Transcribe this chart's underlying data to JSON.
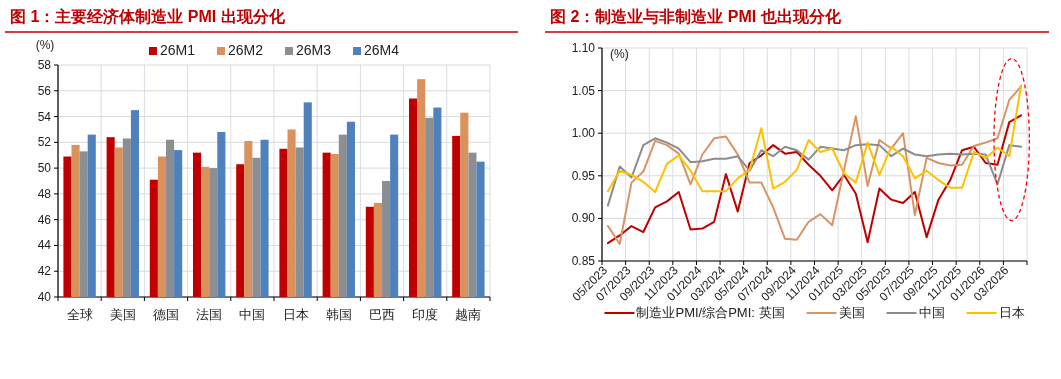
{
  "chart_data": [
    {
      "type": "bar",
      "title": "图 1：主要经济体制造业 PMI 出现分化",
      "ylabel": "(%)",
      "categories": [
        "全球",
        "美国",
        "德国",
        "法国",
        "中国",
        "日本",
        "韩国",
        "巴西",
        "印度",
        "越南"
      ],
      "series": [
        {
          "name": "26M1",
          "color": "#c00000",
          "values": [
            50.9,
            52.4,
            49.1,
            51.2,
            50.3,
            51.5,
            51.2,
            47.0,
            55.4,
            52.5
          ]
        },
        {
          "name": "26M2",
          "color": "#d9925b",
          "values": [
            51.8,
            51.6,
            50.9,
            50.1,
            52.1,
            53.0,
            51.1,
            47.3,
            56.9,
            54.3
          ]
        },
        {
          "name": "26M3",
          "color": "#8b8f94",
          "values": [
            51.3,
            52.3,
            52.2,
            50.0,
            50.8,
            51.6,
            52.6,
            49.0,
            53.9,
            51.2
          ]
        },
        {
          "name": "26M4",
          "color": "#4f81bd",
          "values": [
            52.6,
            54.5,
            51.4,
            52.8,
            52.2,
            55.1,
            53.6,
            52.6,
            54.7,
            50.5
          ]
        }
      ],
      "ylim": [
        40,
        58
      ],
      "yticks": [
        40,
        42,
        44,
        46,
        48,
        50,
        52,
        54,
        56,
        58
      ],
      "grid": true,
      "legend": "top"
    },
    {
      "type": "line",
      "title": "图 2：制造业与非制造业 PMI 也出现分化",
      "ylabel": "(%)",
      "categories": [
        "05/2023",
        null,
        "07/2023",
        null,
        "09/2023",
        null,
        "11/2023",
        null,
        "01/2024",
        null,
        "03/2024",
        null,
        "05/2024",
        null,
        "07/2024",
        null,
        "09/2024",
        null,
        "11/2024",
        null,
        "01/2025",
        null,
        "03/2025",
        null,
        "05/2025",
        null,
        "07/2025",
        null,
        "09/2025",
        null,
        "11/2025",
        null,
        "01/2026",
        null,
        "03/2026",
        null
      ],
      "series": [
        {
          "name": "制造业PMI/综合PMI: 英国",
          "color": "#c00000",
          "values": [
            0.871,
            0.88,
            0.891,
            0.884,
            0.913,
            0.92,
            0.931,
            0.887,
            0.888,
            0.896,
            0.952,
            0.908,
            0.965,
            0.974,
            0.986,
            0.976,
            0.978,
            0.963,
            0.95,
            0.933,
            0.951,
            0.929,
            0.872,
            0.935,
            0.922,
            0.918,
            0.931,
            0.878,
            0.922,
            0.945,
            0.98,
            0.984,
            0.965,
            0.963,
            1.013,
            1.021
          ]
        },
        {
          "name": "美国",
          "color": "#d99465",
          "values": [
            0.891,
            0.87,
            0.942,
            0.955,
            0.991,
            0.986,
            0.976,
            0.94,
            0.975,
            0.994,
            0.996,
            0.975,
            0.942,
            0.942,
            0.913,
            0.876,
            0.875,
            0.896,
            0.905,
            0.892,
            0.957,
            1.02,
            0.938,
            0.992,
            0.982,
            1.0,
            0.904,
            0.971,
            0.965,
            0.962,
            0.963,
            0.985,
            0.989,
            0.994,
            1.039,
            1.055
          ]
        },
        {
          "name": "中国",
          "color": "#8c8c8c",
          "values": [
            0.915,
            0.961,
            0.948,
            0.986,
            0.994,
            0.989,
            0.982,
            0.966,
            0.967,
            0.97,
            0.97,
            0.973,
            0.956,
            0.98,
            0.973,
            0.984,
            0.98,
            0.969,
            0.984,
            0.982,
            0.98,
            0.986,
            0.987,
            0.986,
            0.973,
            0.982,
            0.975,
            0.973,
            0.975,
            0.976,
            0.975,
            0.976,
            0.975,
            0.94,
            0.986,
            0.984
          ]
        },
        {
          "name": "日本",
          "color": "#ffc000",
          "values": [
            0.932,
            0.956,
            0.951,
            0.943,
            0.931,
            0.964,
            0.974,
            0.956,
            0.932,
            0.932,
            0.932,
            0.947,
            0.957,
            1.006,
            0.935,
            0.943,
            0.957,
            0.992,
            0.978,
            0.982,
            0.953,
            0.942,
            0.989,
            0.951,
            0.984,
            0.973,
            0.947,
            0.956,
            0.945,
            0.936,
            0.936,
            0.978,
            0.971,
            0.983,
            0.973,
            1.056
          ]
        }
      ],
      "ylim": [
        0.85,
        1.1
      ],
      "yticks": [
        0.85,
        {
          "value": 0.9,
          "label": "0.90"
        },
        0.95,
        {
          "value": 1.0,
          "label": "1.00"
        },
        1.05,
        {
          "value": 1.1,
          "label": "1.10"
        }
      ],
      "grid": true,
      "legend": "bottom"
    }
  ]
}
